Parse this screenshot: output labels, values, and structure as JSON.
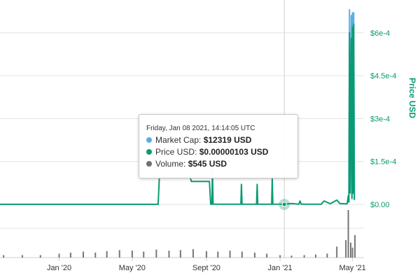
{
  "chart_data": {
    "type": "line",
    "ylabel": "Price USD",
    "y_ticks": [
      "$0.00",
      "$1.5e-4",
      "$3e-4",
      "$4.5e-4",
      "$6e-4"
    ],
    "y_tick_values": [
      0,
      0.00015,
      0.0003,
      0.00045,
      0.0006
    ],
    "ylim": [
      0,
      0.00069
    ],
    "x_ticks": [
      "Jan '20",
      "May '20",
      "Sept '20",
      "Jan '21",
      "May '21"
    ],
    "x_tick_values": [
      "2020-01-01",
      "2020-05-01",
      "2020-09-01",
      "2021-01-01",
      "2021-05-01"
    ],
    "xlim": [
      "2019-09-25",
      "2021-05-20"
    ],
    "grid": true,
    "series": [
      {
        "name": "Price USD",
        "color": "#0a9b73",
        "points": [
          [
            "2019-09-25",
            3e-07
          ],
          [
            "2020-06-13",
            3e-07
          ],
          [
            "2020-06-15",
            9.5e-05
          ],
          [
            "2020-08-05",
            9.5e-05
          ],
          [
            "2020-08-07",
            8e-05
          ],
          [
            "2020-09-06",
            8e-05
          ],
          [
            "2020-09-08",
            5e-07
          ],
          [
            "2020-09-10",
            5e-07
          ],
          [
            "2020-09-11",
            0.00012
          ],
          [
            "2020-09-12",
            5e-07
          ],
          [
            "2020-10-28",
            5e-07
          ],
          [
            "2020-10-29",
            7e-05
          ],
          [
            "2020-10-30",
            5e-07
          ],
          [
            "2020-11-23",
            5e-07
          ],
          [
            "2020-11-24",
            7e-05
          ],
          [
            "2020-11-25",
            5e-07
          ],
          [
            "2020-12-18",
            5e-07
          ],
          [
            "2020-12-19",
            9e-05
          ],
          [
            "2020-12-20",
            5e-07
          ],
          [
            "2021-01-08",
            1.03e-06
          ],
          [
            "2021-01-20",
            3e-06
          ],
          [
            "2021-02-01",
            5e-07
          ],
          [
            "2021-02-03",
            1.2e-05
          ],
          [
            "2021-02-05",
            8e-07
          ],
          [
            "2021-03-10",
            8e-07
          ],
          [
            "2021-03-15",
            1.2e-05
          ],
          [
            "2021-03-25",
            2.5e-06
          ],
          [
            "2021-04-05",
            1.5e-05
          ],
          [
            "2021-04-10",
            3e-06
          ],
          [
            "2021-04-22",
            2e-06
          ],
          [
            "2021-04-24",
            3e-05
          ],
          [
            "2021-04-25",
            8e-06
          ],
          [
            "2021-04-26",
            0.0006
          ],
          [
            "2021-04-27",
            4e-05
          ],
          [
            "2021-04-29",
            0.00058
          ],
          [
            "2021-04-30",
            2e-05
          ],
          [
            "2021-05-01",
            0.00062
          ],
          [
            "2021-05-02",
            4e-05
          ],
          [
            "2021-05-03",
            0.00063
          ],
          [
            "2021-05-04",
            1.5e-05
          ]
        ]
      },
      {
        "name": "Market Cap",
        "color": "#5aaee6",
        "points": [
          [
            "2021-04-25",
            8e-06
          ],
          [
            "2021-04-26",
            0.00068
          ],
          [
            "2021-04-27",
            5e-05
          ],
          [
            "2021-04-29",
            0.00066
          ],
          [
            "2021-04-30",
            3e-05
          ],
          [
            "2021-05-01",
            0.00067
          ],
          [
            "2021-05-02",
            5e-05
          ],
          [
            "2021-05-03",
            0.00067
          ],
          [
            "2021-05-04",
            2e-05
          ]
        ]
      }
    ],
    "volume": {
      "color": "#777777",
      "bars": [
        [
          "2019-10-01",
          0.05
        ],
        [
          "2019-11-01",
          0.05
        ],
        [
          "2019-12-01",
          0.05
        ],
        [
          "2020-01-01",
          0.08
        ],
        [
          "2020-01-20",
          0.1
        ],
        [
          "2020-02-10",
          0.12
        ],
        [
          "2020-03-01",
          0.1
        ],
        [
          "2020-03-20",
          0.13
        ],
        [
          "2020-04-10",
          0.15
        ],
        [
          "2020-05-01",
          0.14
        ],
        [
          "2020-05-20",
          0.12
        ],
        [
          "2020-06-10",
          0.16
        ],
        [
          "2020-07-01",
          0.14
        ],
        [
          "2020-07-20",
          0.15
        ],
        [
          "2020-08-10",
          0.17
        ],
        [
          "2020-09-01",
          0.13
        ],
        [
          "2020-09-20",
          0.12
        ],
        [
          "2020-10-10",
          0.14
        ],
        [
          "2020-10-30",
          0.12
        ],
        [
          "2020-11-20",
          0.1
        ],
        [
          "2020-12-10",
          0.08
        ],
        [
          "2021-01-01",
          0.05
        ],
        [
          "2021-01-20",
          0.04
        ],
        [
          "2021-02-10",
          0.05
        ],
        [
          "2021-03-01",
          0.06
        ],
        [
          "2021-03-20",
          0.08
        ],
        [
          "2021-04-05",
          0.22
        ],
        [
          "2021-04-20",
          0.35
        ],
        [
          "2021-04-24",
          0.95
        ],
        [
          "2021-04-28",
          0.3
        ],
        [
          "2021-05-01",
          0.2
        ],
        [
          "2021-05-05",
          0.45
        ]
      ]
    },
    "crosshair_x": "2021-01-08"
  },
  "tooltip": {
    "timestamp": "Friday, Jan 08 2021, 14:14:05 UTC",
    "rows": [
      {
        "label": "Market Cap:",
        "value": "$12319 USD",
        "color": "#5aaee6"
      },
      {
        "label": "Price USD:",
        "value": "$0.00000103 USD",
        "color": "#0a9b73"
      },
      {
        "label": "Volume:",
        "value": "$545 USD",
        "color": "#707070"
      }
    ]
  }
}
